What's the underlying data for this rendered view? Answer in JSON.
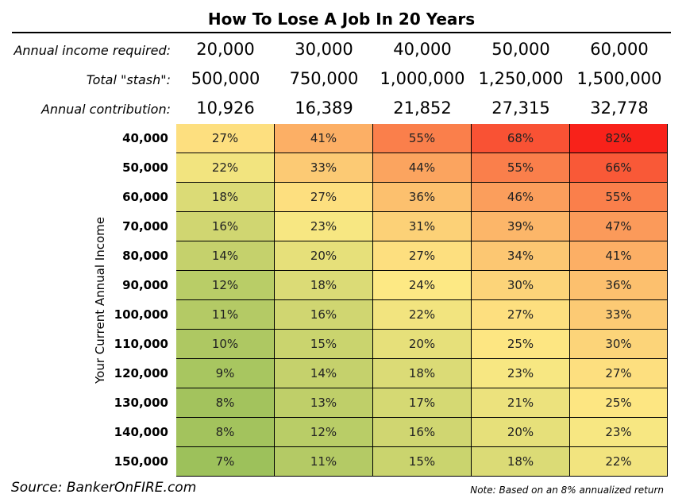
{
  "chart_data": {
    "type": "heatmap",
    "title": "How To Lose A Job In 20 Years",
    "header_rows": [
      {
        "label": "Annual income required:",
        "values": [
          "20,000",
          "30,000",
          "40,000",
          "50,000",
          "60,000"
        ]
      },
      {
        "label": "Total \"stash\":",
        "values": [
          "500,000",
          "750,000",
          "1,000,000",
          "1,250,000",
          "1,500,000"
        ]
      },
      {
        "label": "Annual contribution:",
        "values": [
          "10,926",
          "16,389",
          "21,852",
          "27,315",
          "32,778"
        ]
      }
    ],
    "ylabel": "Your Current Annual Income",
    "row_labels": [
      "40,000",
      "50,000",
      "60,000",
      "70,000",
      "80,000",
      "90,000",
      "100,000",
      "110,000",
      "120,000",
      "130,000",
      "140,000",
      "150,000"
    ],
    "values": [
      [
        27,
        41,
        55,
        68,
        82
      ],
      [
        22,
        33,
        44,
        55,
        66
      ],
      [
        18,
        27,
        36,
        46,
        55
      ],
      [
        16,
        23,
        31,
        39,
        47
      ],
      [
        14,
        20,
        27,
        34,
        41
      ],
      [
        12,
        18,
        24,
        30,
        36
      ],
      [
        11,
        16,
        22,
        27,
        33
      ],
      [
        10,
        15,
        20,
        25,
        30
      ],
      [
        9,
        14,
        18,
        23,
        27
      ],
      [
        8,
        13,
        17,
        21,
        25
      ],
      [
        8,
        12,
        16,
        20,
        23
      ],
      [
        7,
        11,
        15,
        18,
        22
      ]
    ],
    "value_suffix": "%",
    "color_scale": {
      "low": "#9dc15b",
      "mid": "#fde984",
      "high": "#f8221a"
    },
    "source": "Source: BankerOnFIRE.com",
    "note": "Note: Based on an 8% annualized return"
  }
}
